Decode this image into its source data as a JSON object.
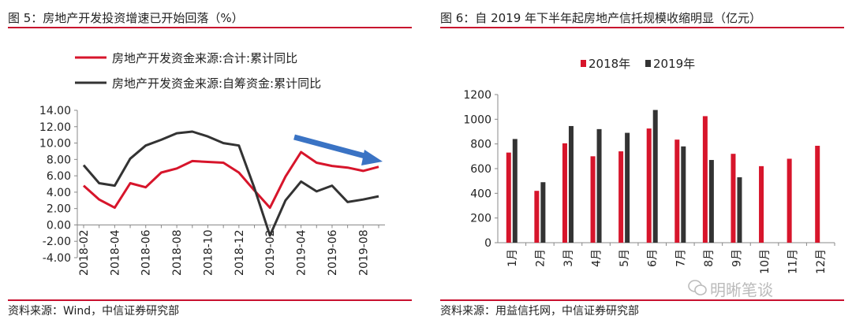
{
  "left": {
    "title": "图 5：房地产开发投资增速已开始回落（%）",
    "source": "资料来源：Wind，中信证券研究部",
    "colors": {
      "series1": "#d7152b",
      "series2": "#333333",
      "arrow": "#3a73c4",
      "rule": "#c8102e"
    },
    "chart_data": {
      "type": "line",
      "x": [
        "2018-02",
        "2018-03",
        "2018-04",
        "2018-05",
        "2018-06",
        "2018-07",
        "2018-08",
        "2018-09",
        "2018-10",
        "2018-11",
        "2018-12",
        "2019-01",
        "2019-02",
        "2019-03",
        "2019-04",
        "2019-05",
        "2019-06",
        "2019-07",
        "2019-08",
        "2019-09"
      ],
      "tick_labels": [
        "2018-02",
        "2018-04",
        "2018-06",
        "2018-08",
        "2018-10",
        "2018-12",
        "2019-02",
        "2019-04",
        "2019-06",
        "2019-08"
      ],
      "series": [
        {
          "name": "房地产开发资金来源:合计:累计同比",
          "values": [
            4.8,
            3.1,
            2.1,
            5.1,
            4.6,
            6.4,
            6.9,
            7.8,
            7.7,
            7.6,
            6.4,
            4.2,
            2.1,
            5.9,
            8.9,
            7.6,
            7.2,
            7.0,
            6.6,
            7.1
          ]
        },
        {
          "name": "房地产开发资金来源:自筹资金:累计同比",
          "values": [
            7.3,
            5.1,
            4.8,
            8.1,
            9.7,
            10.4,
            11.2,
            11.4,
            10.8,
            10.0,
            9.7,
            4.5,
            -1.3,
            3.0,
            5.3,
            4.1,
            4.8,
            2.8,
            3.1,
            3.5
          ]
        }
      ],
      "ylim": [
        -4.0,
        14.0
      ],
      "yticks": [
        "14.00",
        "12.00",
        "10.00",
        "8.00",
        "6.00",
        "4.00",
        "2.00",
        "0.00",
        "-2.00",
        "-4.00"
      ],
      "legend": "top",
      "annotation": "downward-arrow"
    }
  },
  "right": {
    "title": "图 6：自 2019 年下半年起房地产信托规模收缩明显（亿元）",
    "source": "资料来源：用益信托网，中信证券研究部",
    "colors": {
      "series1": "#d7152b",
      "series2": "#333333",
      "rule": "#c8102e"
    },
    "chart_data": {
      "type": "bar",
      "categories": [
        "1月",
        "2月",
        "3月",
        "4月",
        "5月",
        "6月",
        "7月",
        "8月",
        "9月",
        "10月",
        "11月",
        "12月"
      ],
      "series": [
        {
          "name": "2018年",
          "values": [
            730,
            420,
            805,
            700,
            740,
            925,
            835,
            1025,
            720,
            620,
            680,
            785
          ]
        },
        {
          "name": "2019年",
          "values": [
            840,
            490,
            945,
            920,
            890,
            1075,
            780,
            670,
            530,
            null,
            null,
            null
          ]
        }
      ],
      "ylim": [
        0,
        1200
      ],
      "yticks": [
        "1200",
        "1000",
        "800",
        "600",
        "400",
        "200",
        "0"
      ],
      "legend": "top"
    }
  },
  "watermark": "明晰笔谈"
}
